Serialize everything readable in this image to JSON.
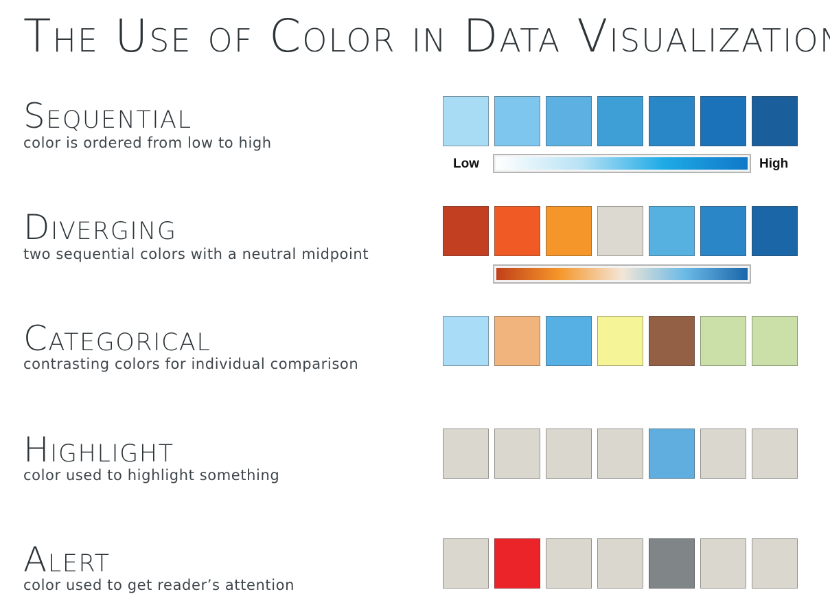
{
  "title": "The Use of Color in Data Visualization",
  "sections": [
    {
      "id": "sequential",
      "title": "Sequential",
      "description": "color is ordered from low to high",
      "swatches": [
        "#a8dcf5",
        "#7ec6ee",
        "#5cb1e2",
        "#3e9ed6",
        "#2a87c7",
        "#1c72b8",
        "#1a5f9c"
      ],
      "ramp": {
        "colors": [
          "#ffffff",
          "#b9e2f5",
          "#1eaae6",
          "#1078c8"
        ],
        "low_label": "Low",
        "high_label": "High"
      }
    },
    {
      "id": "diverging",
      "title": "Diverging",
      "description": "two sequential colors with a neutral midpoint",
      "swatches": [
        "#c23f22",
        "#f05b25",
        "#f5962a",
        "#dcd9d0",
        "#56b0e0",
        "#2b86c8",
        "#1b66a6"
      ],
      "ramp": {
        "colors": [
          "#c0401a",
          "#f5962a",
          "#f3e6d6",
          "#6bbae6",
          "#1a66aa"
        ]
      }
    },
    {
      "id": "categorical",
      "title": "Categorical",
      "description": "contrasting colors for individual comparison",
      "swatches": [
        "#a9dcf6",
        "#f0b47c",
        "#56b0e3",
        "#f5f497",
        "#935f45",
        "#cae0a8",
        "#cae0a8"
      ]
    },
    {
      "id": "highlight",
      "title": "Highlight",
      "description": "color used to highlight something",
      "swatches": [
        "#dad8ce",
        "#dad8ce",
        "#dad8ce",
        "#dad8ce",
        "#60addf",
        "#dad8ce",
        "#dad8ce"
      ]
    },
    {
      "id": "alert",
      "title": "Alert",
      "description": "color used to get reader’s attention",
      "swatches": [
        "#dad8ce",
        "#ea2429",
        "#dad8ce",
        "#dad8ce",
        "#808588",
        "#dad8ce",
        "#dad8ce"
      ]
    }
  ]
}
